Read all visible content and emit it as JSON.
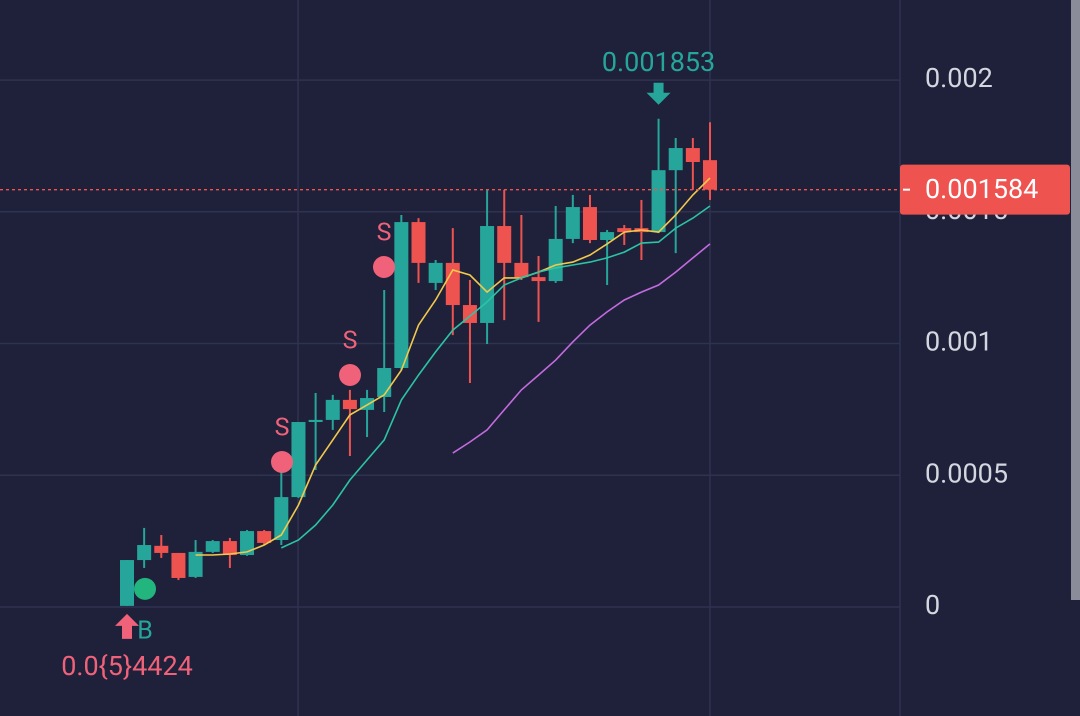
{
  "chart_data": {
    "type": "candlestick",
    "ylim": [
      -0.000414,
      0.002304
    ],
    "yticks": [
      0,
      0.0005,
      0.001,
      0.0015,
      0.002
    ],
    "grid": true,
    "up_color": "#26a69a",
    "down_color": "#ef5350",
    "candles": {
      "open": [
        4e-06,
        0.000178,
        0.000232,
        0.000205,
        0.000114,
        0.000209,
        0.00025,
        0.000197,
        0.000288,
        0.000254,
        0.000417,
        0.000702,
        0.00071,
        0.000786,
        0.000748,
        0.000797,
        0.000907,
        0.001461,
        0.00123,
        0.001306,
        0.001146,
        0.001078,
        0.001446,
        0.001306,
        0.001252,
        0.001237,
        0.001397,
        0.001518,
        0.001393,
        0.001438,
        0.001438,
        0.001423,
        0.001658,
        0.001742,
        0.001696
      ],
      "high": [
        0.000178,
        0.0003,
        0.000273,
        0.000205,
        0.000254,
        0.000254,
        0.000262,
        0.000292,
        0.000292,
        0.00052,
        0.000702,
        0.000812,
        0.000805,
        0.000824,
        0.000824,
        0.001203,
        0.001488,
        0.001476,
        0.001317,
        0.001438,
        0.001241,
        0.001583,
        0.001583,
        0.001488,
        0.001332,
        0.001522,
        0.001564,
        0.001564,
        0.001431,
        0.00145,
        0.001545,
        0.001853,
        0.00178,
        0.00178,
        0.00184
      ],
      "low": [
        4e-06,
        0.000148,
        0.000186,
        0.000102,
        0.00011,
        0.000205,
        0.000148,
        0.000194,
        0.000235,
        0.000235,
        0.000414,
        0.00052,
        0.000672,
        0.000573,
        0.000645,
        0.00074,
        0.000899,
        0.00123,
        0.001203,
        0.001032,
        0.00085,
        0.000998,
        0.001089,
        0.001241,
        0.001082,
        0.00123,
        0.001381,
        0.001381,
        0.001222,
        0.001374,
        0.001317,
        0.001419,
        0.001343,
        0.001583,
        0.001545
      ],
      "close": [
        0.000178,
        0.000235,
        0.000205,
        0.00011,
        0.000209,
        0.00025,
        0.000197,
        0.000288,
        0.000243,
        0.000417,
        0.000702,
        0.00071,
        0.000786,
        0.000751,
        0.000793,
        0.000907,
        0.001461,
        0.001306,
        0.001306,
        0.001146,
        0.001078,
        0.001446,
        0.001306,
        0.001252,
        0.001237,
        0.001397,
        0.001518,
        0.001393,
        0.001423,
        0.001423,
        0.001423,
        0.001658,
        0.001742,
        0.001689,
        0.001584
      ]
    },
    "lines": [
      {
        "color": "#f2c94c",
        "values": [
          null,
          null,
          null,
          null,
          0.000197,
          0.000197,
          0.000201,
          0.000209,
          0.000235,
          0.000273,
          0.000387,
          0.000539,
          0.000634,
          0.000729,
          0.000767,
          0.000805,
          0.000899,
          0.00107,
          0.001165,
          0.001279,
          0.00126,
          0.001195,
          0.001249,
          0.001249,
          0.001271,
          0.001298,
          0.001309,
          0.001336,
          0.001378,
          0.001423,
          0.001431,
          0.001423,
          0.001488,
          0.001564,
          0.001628
        ]
      },
      {
        "color": "#2bc4a4",
        "values": [
          null,
          null,
          null,
          null,
          null,
          null,
          null,
          null,
          null,
          0.000224,
          0.000254,
          0.000311,
          0.000387,
          0.000482,
          0.000558,
          0.000634,
          0.000786,
          0.00088,
          0.000968,
          0.001051,
          0.001104,
          0.001158,
          0.001222,
          0.001249,
          0.001271,
          0.001287,
          0.001298,
          0.001309,
          0.001325,
          0.001347,
          0.001381,
          0.001385,
          0.001438,
          0.001476,
          0.001522
        ]
      },
      {
        "color": "#c46ae0",
        "values": [
          null,
          null,
          null,
          null,
          null,
          null,
          null,
          null,
          null,
          null,
          null,
          null,
          null,
          null,
          null,
          null,
          null,
          null,
          null,
          0.000584,
          0.000626,
          0.000672,
          0.000748,
          0.000824,
          0.00088,
          0.000937,
          0.001006,
          0.00107,
          0.00112,
          0.001165,
          0.001195,
          0.001222,
          0.001271,
          0.001325,
          0.001378
        ]
      }
    ],
    "last_price": 0.001584,
    "last_price_color": "#ef5350",
    "high_label": "0.001853",
    "low_label": "0.0{5}4424",
    "buy_marker": "B",
    "sell_markers": [
      "S",
      "S",
      "S"
    ]
  }
}
